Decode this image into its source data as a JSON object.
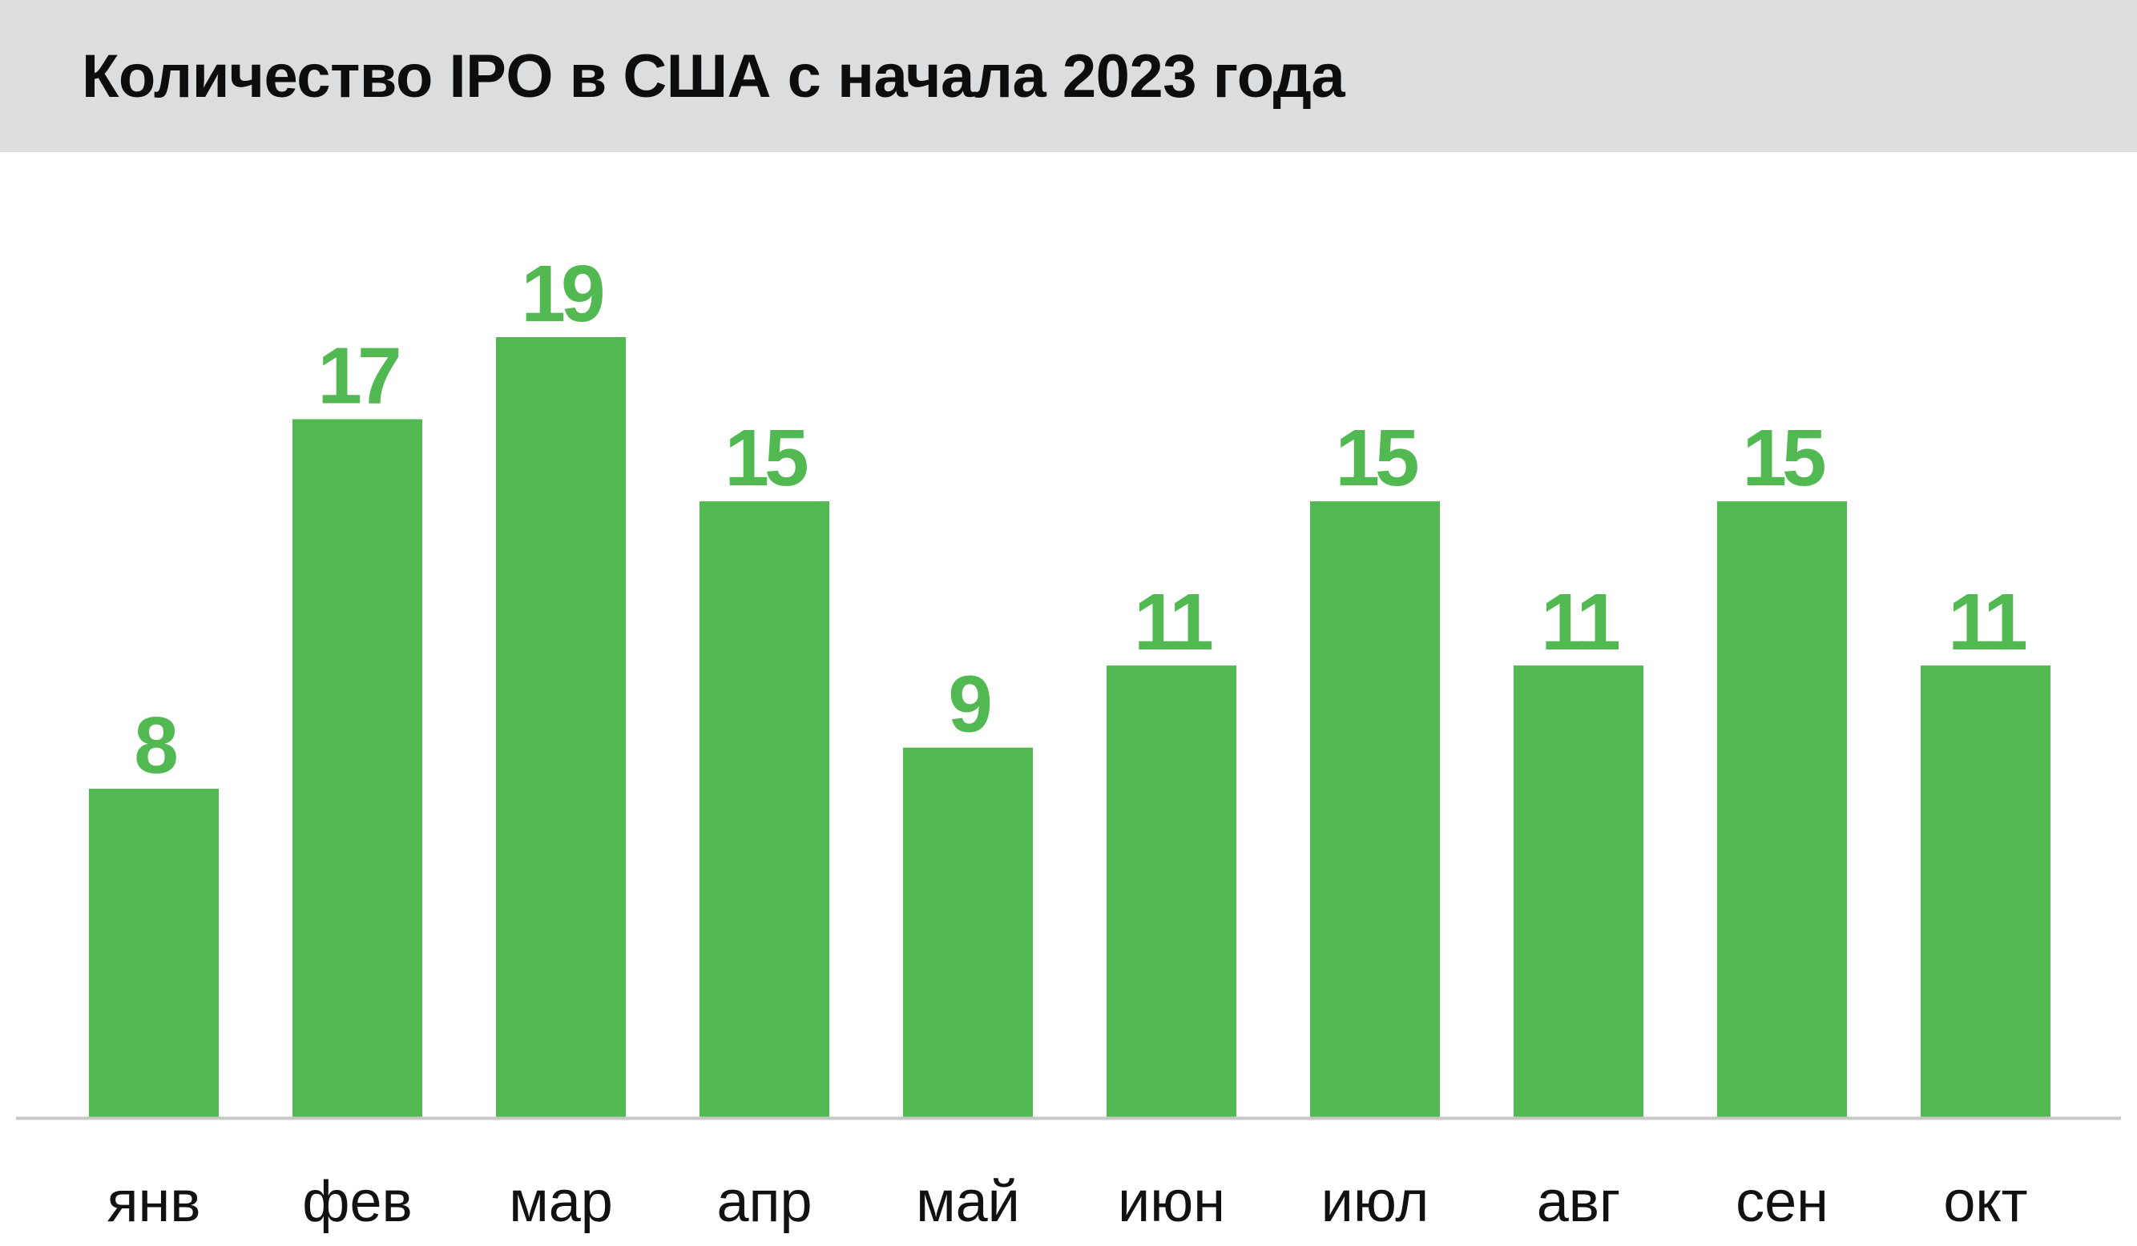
{
  "title": "Количество IPO в США с начала 2023 года",
  "colors": {
    "bar": "#52b952",
    "value_label": "#52b952",
    "axis": "#c8c8c8",
    "header_bg": "#dcdddf",
    "category_label": "#111111"
  },
  "chart_data": {
    "type": "bar",
    "title": "Количество IPO в США с начала 2023 года",
    "categories": [
      "янв",
      "фев",
      "мар",
      "апр",
      "май",
      "июн",
      "июл",
      "авг",
      "сен",
      "окт"
    ],
    "values": [
      8,
      17,
      19,
      15,
      9,
      11,
      15,
      11,
      15,
      11
    ],
    "xlabel": "",
    "ylabel": "",
    "ylim": [
      0,
      19
    ],
    "grid": false,
    "legend": "none",
    "data_labels": true
  }
}
